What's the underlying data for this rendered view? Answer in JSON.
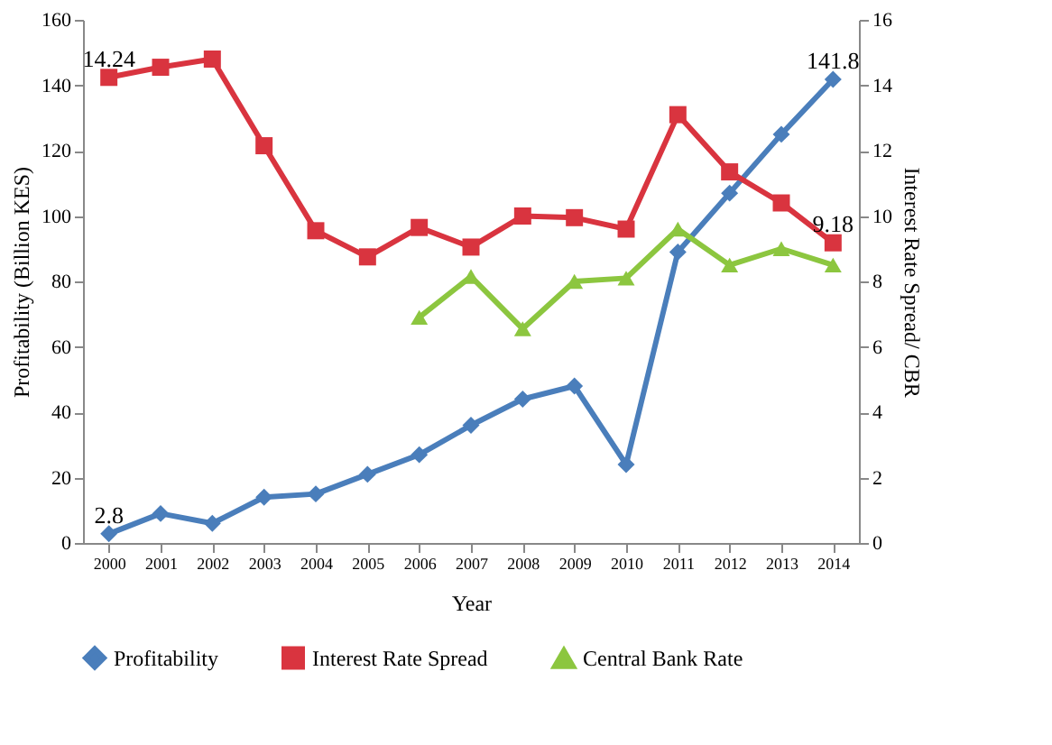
{
  "chart_data": {
    "type": "line",
    "xlabel": "Year",
    "ylabel": "Profitability (Billion KES)",
    "y2label": "Interest  Rate Spread/ CBR",
    "categories": [
      "2000",
      "2001",
      "2002",
      "2003",
      "2004",
      "2005",
      "2006",
      "2007",
      "2008",
      "2009",
      "2010",
      "2011",
      "2012",
      "2013",
      "2014"
    ],
    "series": [
      {
        "name": "Profitability",
        "color": "#4a7ebb",
        "marker": "diamond",
        "values": [
          2.8,
          9,
          6,
          14,
          15,
          21,
          27,
          36,
          44,
          48,
          24,
          89,
          107,
          125,
          141.8
        ],
        "value_labels": [
          "2.8",
          null,
          null,
          null,
          null,
          null,
          null,
          null,
          null,
          null,
          null,
          null,
          null,
          null,
          "141.8"
        ]
      },
      {
        "name": "Interest Rate Spread",
        "color": "#d9343f",
        "marker": "square",
        "axis": "y2",
        "values": [
          14.24,
          14.55,
          14.8,
          12.15,
          9.55,
          8.75,
          9.65,
          9.05,
          10.0,
          9.95,
          9.6,
          13.1,
          11.35,
          10.4,
          9.18
        ],
        "value_labels": [
          "14.24",
          null,
          null,
          null,
          null,
          null,
          null,
          null,
          null,
          null,
          null,
          null,
          null,
          null,
          "9.18"
        ]
      },
      {
        "name": "Central Bank Rate",
        "color": "#8cc63f",
        "marker": "triangle",
        "axis": "y2",
        "values": [
          null,
          null,
          null,
          null,
          null,
          null,
          6.9,
          8.15,
          6.55,
          8.0,
          8.1,
          9.6,
          8.5,
          9.0,
          8.5
        ]
      }
    ],
    "ylim": [
      0,
      160
    ],
    "yticks": [
      0,
      20,
      40,
      60,
      80,
      100,
      120,
      140,
      160
    ],
    "y2lim": [
      0,
      16
    ],
    "y2ticks": [
      0,
      2,
      4,
      6,
      8,
      10,
      12,
      14,
      16
    ],
    "grid": false,
    "legend": "bottom",
    "line_style": "solid"
  }
}
